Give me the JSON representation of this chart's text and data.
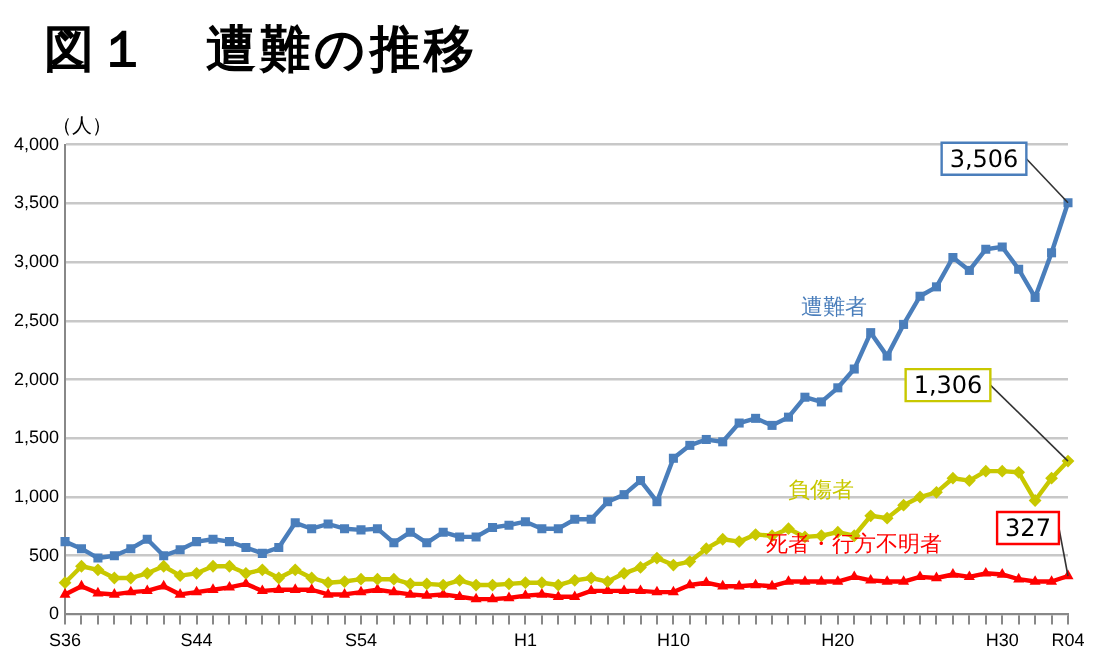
{
  "chart_data": {
    "type": "line",
    "title": "図１　遭難の推移",
    "ylabel": "（人）",
    "categories": [
      "S36",
      null,
      null,
      null,
      null,
      null,
      null,
      null,
      "S44",
      null,
      null,
      null,
      null,
      null,
      null,
      null,
      null,
      null,
      "S54",
      null,
      null,
      null,
      null,
      null,
      null,
      null,
      null,
      null,
      "H1",
      null,
      null,
      null,
      null,
      null,
      null,
      null,
      null,
      "H10",
      null,
      null,
      null,
      null,
      null,
      null,
      null,
      null,
      null,
      "H20",
      null,
      null,
      null,
      null,
      null,
      null,
      null,
      null,
      null,
      "H30",
      null,
      null,
      null,
      "R04"
    ],
    "series": [
      {
        "name": "遭難者",
        "color": "#4a7ebb",
        "marker": "square",
        "values": [
          620,
          560,
          480,
          500,
          560,
          640,
          500,
          550,
          620,
          640,
          620,
          570,
          520,
          570,
          780,
          730,
          770,
          730,
          720,
          730,
          610,
          700,
          610,
          700,
          660,
          660,
          740,
          760,
          790,
          730,
          730,
          810,
          810,
          960,
          1020,
          1140,
          960,
          1330,
          1440,
          1490,
          1470,
          1630,
          1670,
          1610,
          1680,
          1850,
          1810,
          1930,
          2090,
          2400,
          2200,
          2470,
          2710,
          2790,
          3040,
          2930,
          3110,
          3130,
          2940,
          2700,
          3080,
          3506
        ]
      },
      {
        "name": "負傷者",
        "color": "#c8c800",
        "marker": "diamond",
        "values": [
          270,
          410,
          380,
          310,
          310,
          350,
          410,
          330,
          350,
          410,
          410,
          350,
          380,
          310,
          380,
          310,
          270,
          280,
          300,
          300,
          300,
          260,
          260,
          250,
          290,
          250,
          250,
          260,
          270,
          270,
          250,
          290,
          310,
          280,
          350,
          400,
          480,
          420,
          450,
          560,
          640,
          620,
          680,
          670,
          730,
          660,
          670,
          700,
          670,
          840,
          820,
          930,
          1000,
          1040,
          1160,
          1140,
          1220,
          1220,
          1210,
          970,
          1160,
          1306
        ]
      },
      {
        "name": "死者・行方不明者",
        "color": "#ff0000",
        "marker": "triangle",
        "values": [
          170,
          240,
          180,
          170,
          190,
          200,
          240,
          170,
          190,
          210,
          230,
          260,
          200,
          210,
          210,
          210,
          170,
          170,
          190,
          210,
          190,
          170,
          160,
          170,
          150,
          130,
          130,
          140,
          160,
          170,
          150,
          150,
          200,
          200,
          200,
          200,
          190,
          190,
          250,
          270,
          240,
          240,
          250,
          240,
          280,
          280,
          280,
          280,
          320,
          290,
          280,
          280,
          320,
          310,
          340,
          320,
          350,
          340,
          300,
          280,
          280,
          327
        ]
      }
    ],
    "annotations": [
      {
        "text": "3,506",
        "x": "R04",
        "y": 3506
      },
      {
        "text": "1,306",
        "x": "R04",
        "y": 1306
      },
      {
        "text": "327",
        "x": "R04",
        "y": 327
      }
    ],
    "ylim": [
      0,
      4000
    ],
    "yticks": [
      0,
      500,
      {
        "value": 1000,
        "label": "1,000"
      },
      {
        "value": 1500,
        "label": "1,500"
      },
      {
        "value": 2000,
        "label": "2,000"
      },
      {
        "value": 2500,
        "label": "2,500"
      },
      {
        "value": 3000,
        "label": "3,000"
      },
      {
        "value": 3500,
        "label": "3,500"
      },
      {
        "value": 4000,
        "label": "4,000"
      }
    ],
    "grid": "y",
    "legend": false
  }
}
